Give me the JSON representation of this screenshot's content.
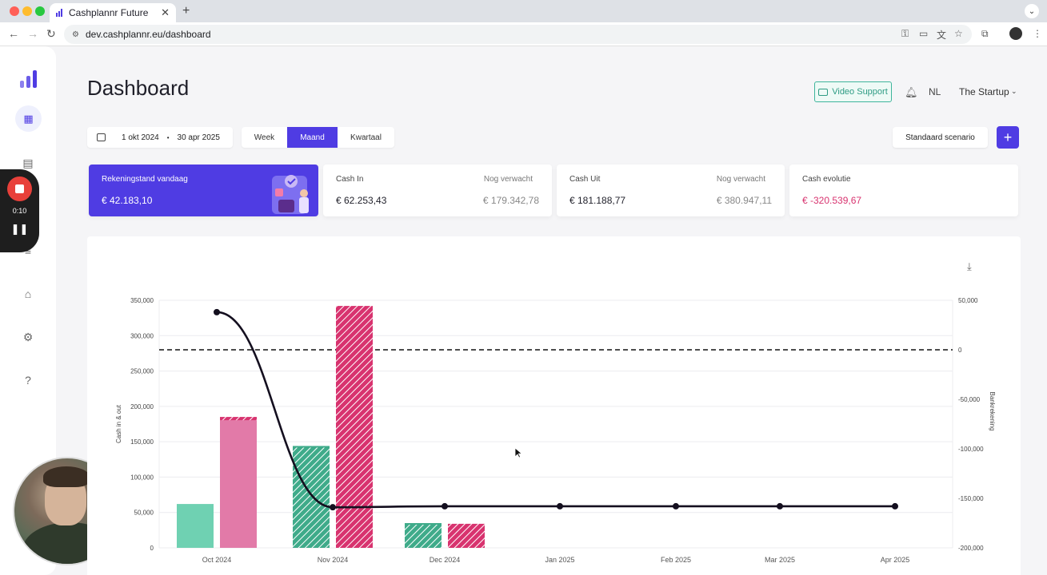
{
  "browser": {
    "tab_title": "Cashplannr Future",
    "url": "dev.cashplannr.eu/dashboard"
  },
  "recorder": {
    "time": "0:10"
  },
  "header": {
    "title": "Dashboard",
    "video_support": "Video Support",
    "language": "NL",
    "company": "The Startup"
  },
  "filters": {
    "date_from": "1 okt 2024",
    "date_to": "30 apr 2025",
    "periods": [
      "Week",
      "Maand",
      "Kwartaal"
    ],
    "active_period": "Maand",
    "scenario": "Standaard scenario"
  },
  "cards": {
    "balance": {
      "label": "Rekeningstand vandaag",
      "value": "€ 42.183,10"
    },
    "cash_in": {
      "label": "Cash In",
      "value": "€ 62.253,43",
      "expected_label": "Nog verwacht",
      "expected_value": "€ 179.342,78"
    },
    "cash_out": {
      "label": "Cash Uit",
      "value": "€ 181.188,77",
      "expected_label": "Nog verwacht",
      "expected_value": "€ 380.947,11"
    },
    "evolution": {
      "label": "Cash evolutie",
      "value": "€ -320.539,67"
    }
  },
  "colors": {
    "accent": "#4f3ce3",
    "cash_in": "#6fd1b2",
    "cash_in_forecast": "#3fab8a",
    "cash_out": "#e27aa8",
    "cash_out_forecast": "#d8336f",
    "negative": "#d8336f",
    "line": "#140f1f"
  },
  "chart_data": {
    "type": "bar",
    "categories": [
      "Oct 2024",
      "Nov 2024",
      "Dec 2024",
      "Jan 2025",
      "Feb 2025",
      "Mar 2025",
      "Apr 2025"
    ],
    "ylabel": "Cash in & out",
    "y2label": "Bankrekening",
    "ylim": [
      0,
      350000
    ],
    "y2lim": [
      -200000,
      50000
    ],
    "y_ticks": [
      "0",
      "50,000",
      "100,000",
      "150,000",
      "200,000",
      "250,000",
      "300,000",
      "350,000"
    ],
    "y2_ticks": [
      "-200,000",
      "-150,000",
      "-100,000",
      "-50,000",
      "0",
      "50,000"
    ],
    "series": [
      {
        "values": [
          62000,
          144000,
          35000,
          0,
          0,
          0,
          0
        ],
        "forecast": [
          false,
          true,
          true,
          false,
          false,
          false,
          false
        ]
      },
      {
        "values": [
          185000,
          342000,
          34000,
          0,
          0,
          0,
          0
        ],
        "forecast": [
          false,
          true,
          true,
          false,
          false,
          false,
          false
        ]
      }
    ],
    "line": {
      "axis": "y2",
      "values": [
        38000,
        -159000,
        -158000,
        -158000,
        -158000,
        -158000,
        -158000
      ]
    },
    "reference_line": {
      "axis": "y2",
      "value": 0,
      "style": "dashed"
    }
  }
}
